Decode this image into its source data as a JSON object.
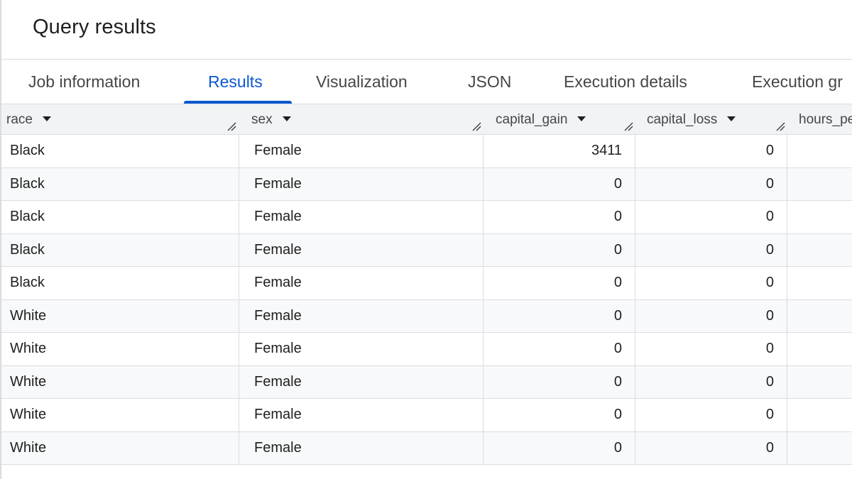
{
  "panel": {
    "title": "Query results"
  },
  "tabs": [
    {
      "label": "Job information",
      "active": false
    },
    {
      "label": "Results",
      "active": true
    },
    {
      "label": "Visualization",
      "active": false
    },
    {
      "label": "JSON",
      "active": false
    },
    {
      "label": "Execution details",
      "active": false
    },
    {
      "label": "Execution gr",
      "active": false
    }
  ],
  "table": {
    "columns": [
      {
        "name": "race"
      },
      {
        "name": "sex"
      },
      {
        "name": "capital_gain"
      },
      {
        "name": "capital_loss"
      },
      {
        "name": "hours_pe"
      }
    ],
    "rows": [
      {
        "race": "Black",
        "sex": "Female",
        "capital_gain": "3411",
        "capital_loss": "0"
      },
      {
        "race": "Black",
        "sex": "Female",
        "capital_gain": "0",
        "capital_loss": "0"
      },
      {
        "race": "Black",
        "sex": "Female",
        "capital_gain": "0",
        "capital_loss": "0"
      },
      {
        "race": "Black",
        "sex": "Female",
        "capital_gain": "0",
        "capital_loss": "0"
      },
      {
        "race": "Black",
        "sex": "Female",
        "capital_gain": "0",
        "capital_loss": "0"
      },
      {
        "race": "White",
        "sex": "Female",
        "capital_gain": "0",
        "capital_loss": "0"
      },
      {
        "race": "White",
        "sex": "Female",
        "capital_gain": "0",
        "capital_loss": "0"
      },
      {
        "race": "White",
        "sex": "Female",
        "capital_gain": "0",
        "capital_loss": "0"
      },
      {
        "race": "White",
        "sex": "Female",
        "capital_gain": "0",
        "capital_loss": "0"
      },
      {
        "race": "White",
        "sex": "Female",
        "capital_gain": "0",
        "capital_loss": "0"
      }
    ]
  },
  "colors": {
    "accent": "#0b57d0",
    "header_bg": "#f1f3f4",
    "grid_line": "#dadce0",
    "text": "#1f1f1f",
    "muted_text": "#444746"
  },
  "icons": {
    "sort": "triangle-down-icon",
    "resize": "column-resize-icon"
  }
}
